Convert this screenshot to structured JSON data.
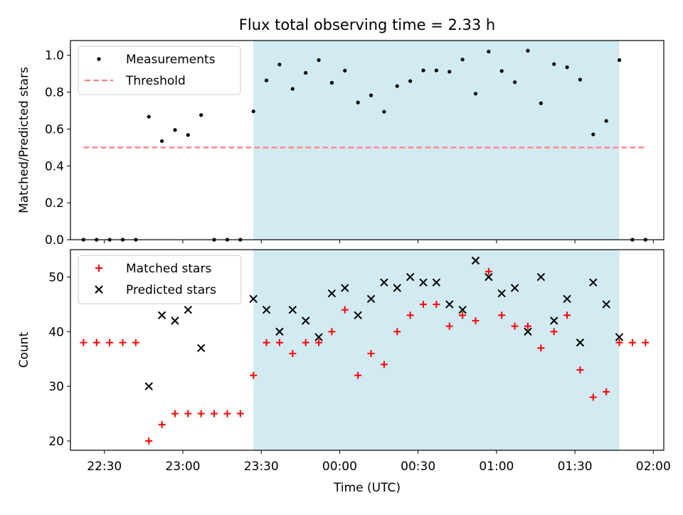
{
  "title": "Flux total observing time = 2.33 h",
  "xlabel": "Time (UTC)",
  "x_ticks": [
    "22:30",
    "23:00",
    "23:30",
    "00:00",
    "00:30",
    "01:00",
    "01:30",
    "02:00"
  ],
  "colors": {
    "shade": "#add8e6",
    "measurement": "#000000",
    "threshold": "#ff7f7f",
    "matched": "#ff0000",
    "predicted": "#000000"
  },
  "chart_data": [
    {
      "type": "scatter",
      "ylabel": "Matched/Predicted stars",
      "ylim": [
        0,
        1.08
      ],
      "y_ticks": [
        "0.0",
        "0.2",
        "0.4",
        "0.6",
        "0.8",
        "1.0"
      ],
      "x_range": [
        "22:17",
        "02:04"
      ],
      "shaded_interval": [
        "23:27",
        "01:47"
      ],
      "legend": {
        "placement": "top-left",
        "entries": [
          "Measurements",
          "Threshold"
        ]
      },
      "threshold": {
        "value": 0.5,
        "x_start": "22:22",
        "x_end": "01:57"
      },
      "series": [
        {
          "name": "Measurements",
          "marker": "dot",
          "times": [
            "22:22",
            "22:27",
            "22:32",
            "22:37",
            "22:42",
            "22:47",
            "22:52",
            "22:57",
            "23:02",
            "23:07",
            "23:12",
            "23:17",
            "23:22",
            "23:27",
            "23:32",
            "23:37",
            "23:42",
            "23:47",
            "23:52",
            "23:57",
            "00:02",
            "00:07",
            "00:12",
            "00:17",
            "00:22",
            "00:27",
            "00:32",
            "00:37",
            "00:42",
            "00:47",
            "00:52",
            "00:57",
            "01:02",
            "01:07",
            "01:12",
            "01:17",
            "01:22",
            "01:27",
            "01:32",
            "01:37",
            "01:42",
            "01:47",
            "01:52",
            "01:57"
          ],
          "values": [
            0,
            0,
            0,
            0,
            0,
            0.667,
            0.535,
            0.595,
            0.568,
            0.676,
            0,
            0,
            0,
            0.696,
            0.864,
            0.95,
            0.818,
            0.905,
            0.974,
            0.851,
            0.917,
            0.744,
            0.783,
            0.694,
            0.833,
            0.86,
            0.918,
            0.918,
            0.911,
            0.977,
            0.792,
            1.02,
            0.915,
            0.854,
            1.025,
            0.74,
            0.952,
            0.935,
            0.868,
            0.571,
            0.644,
            0.974,
            0,
            0
          ]
        }
      ]
    },
    {
      "type": "scatter",
      "ylabel": "Count",
      "ylim": [
        18.3,
        55
      ],
      "y_ticks": [
        "20",
        "30",
        "40",
        "50"
      ],
      "x_range": [
        "22:17",
        "02:04"
      ],
      "shaded_interval": [
        "23:27",
        "01:47"
      ],
      "legend": {
        "placement": "top-left",
        "entries": [
          "Matched stars",
          "Predicted stars"
        ]
      },
      "series": [
        {
          "name": "Matched stars",
          "marker": "plus",
          "times": [
            "22:22",
            "22:27",
            "22:32",
            "22:37",
            "22:42",
            "22:47",
            "22:52",
            "22:57",
            "23:02",
            "23:07",
            "23:12",
            "23:17",
            "23:22",
            "23:27",
            "23:32",
            "23:37",
            "23:42",
            "23:47",
            "23:52",
            "23:57",
            "00:02",
            "00:07",
            "00:12",
            "00:17",
            "00:22",
            "00:27",
            "00:32",
            "00:37",
            "00:42",
            "00:47",
            "00:52",
            "00:57",
            "01:02",
            "01:07",
            "01:12",
            "01:17",
            "01:22",
            "01:27",
            "01:32",
            "01:37",
            "01:42",
            "01:47",
            "01:52",
            "01:57"
          ],
          "values": [
            38,
            38,
            38,
            38,
            38,
            20,
            23,
            25,
            25,
            25,
            25,
            25,
            25,
            32,
            38,
            38,
            36,
            38,
            38,
            40,
            44,
            32,
            36,
            34,
            40,
            43,
            45,
            45,
            41,
            43,
            42,
            51,
            43,
            41,
            41,
            37,
            40,
            43,
            33,
            28,
            29,
            38,
            38,
            38
          ]
        },
        {
          "name": "Predicted stars",
          "marker": "x",
          "times": [
            "22:47",
            "22:52",
            "22:57",
            "23:02",
            "23:07",
            "23:27",
            "23:32",
            "23:37",
            "23:42",
            "23:47",
            "23:52",
            "23:57",
            "00:02",
            "00:07",
            "00:12",
            "00:17",
            "00:22",
            "00:27",
            "00:32",
            "00:37",
            "00:42",
            "00:47",
            "00:52",
            "00:57",
            "01:02",
            "01:07",
            "01:12",
            "01:17",
            "01:22",
            "01:27",
            "01:32",
            "01:37",
            "01:42",
            "01:47"
          ],
          "values": [
            30,
            43,
            42,
            44,
            37,
            46,
            44,
            40,
            44,
            42,
            39,
            47,
            48,
            43,
            46,
            49,
            48,
            50,
            49,
            49,
            45,
            44,
            53,
            50,
            47,
            48,
            40,
            50,
            42,
            46,
            38,
            49,
            45,
            39
          ]
        }
      ]
    }
  ]
}
